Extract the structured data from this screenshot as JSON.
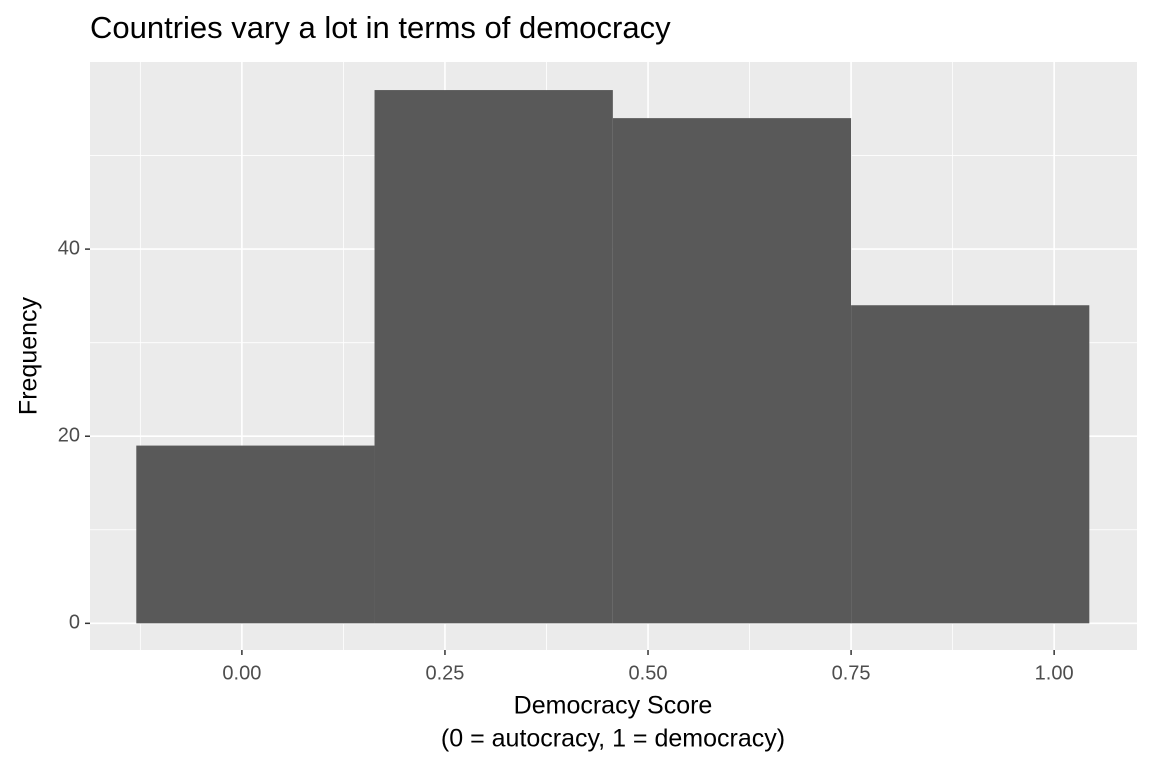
{
  "chart_data": {
    "type": "histogram",
    "title": "Countries vary a lot in terms of democracy",
    "xlabel": [
      "Democracy Score",
      "(0 = autocracy, 1 = democracy)"
    ],
    "ylabel": "Frequency",
    "bins": [
      -0.13,
      0.1633,
      0.4567,
      0.75,
      1.0433
    ],
    "values": [
      19,
      57,
      54,
      34
    ],
    "color": "#595959",
    "xlim": [
      -0.187,
      1.102
    ],
    "ylim": [
      -2.85,
      60
    ],
    "xticks": [
      {
        "value": 0,
        "label": "0.00"
      },
      0.25,
      {
        "value": 0.5,
        "label": "0.50"
      },
      0.75,
      {
        "value": 1,
        "label": "1.00"
      }
    ],
    "yticks": [
      0,
      20,
      40
    ],
    "grid": true
  }
}
